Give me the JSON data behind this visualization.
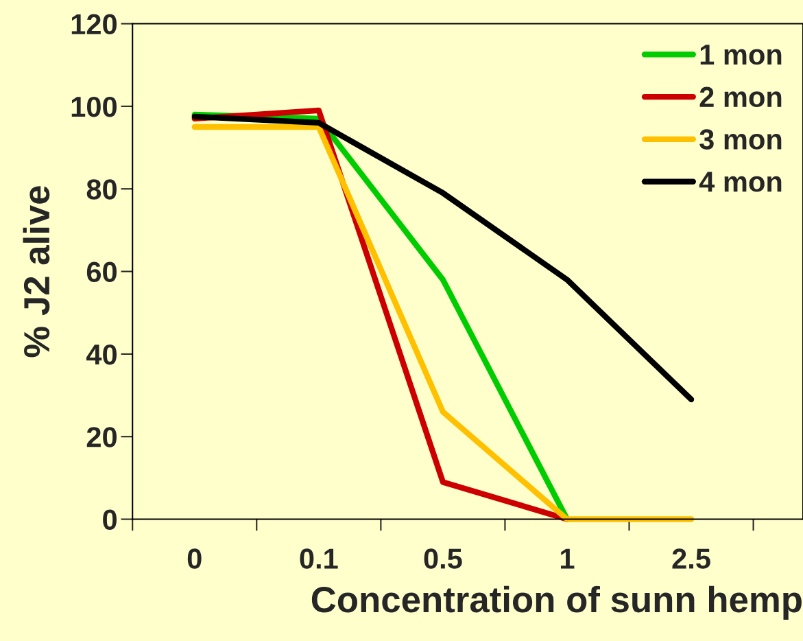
{
  "chart_data": {
    "type": "line",
    "xlabel": "Concentration of sunn hemp",
    "ylabel": "% J2 alive",
    "categories": [
      "0",
      "0.1",
      "0.5",
      "1",
      "2.5"
    ],
    "series": [
      {
        "name": "1 mon",
        "color": "#00cc00",
        "values": [
          98,
          97,
          58,
          0,
          null
        ]
      },
      {
        "name": "2 mon",
        "color": "#cc0000",
        "values": [
          97,
          99,
          9,
          0,
          null
        ]
      },
      {
        "name": "3 mon",
        "color": "#ffc000",
        "values": [
          95,
          95,
          26,
          0,
          0
        ]
      },
      {
        "name": "4 mon",
        "color": "#000000",
        "values": [
          97.5,
          96,
          79,
          58,
          29
        ]
      }
    ],
    "ylim": [
      0,
      120
    ],
    "yticks": [
      0,
      20,
      40,
      60,
      80,
      100,
      120
    ],
    "grid": false,
    "legend": "top right",
    "marker": "none",
    "line_style": "solid"
  }
}
